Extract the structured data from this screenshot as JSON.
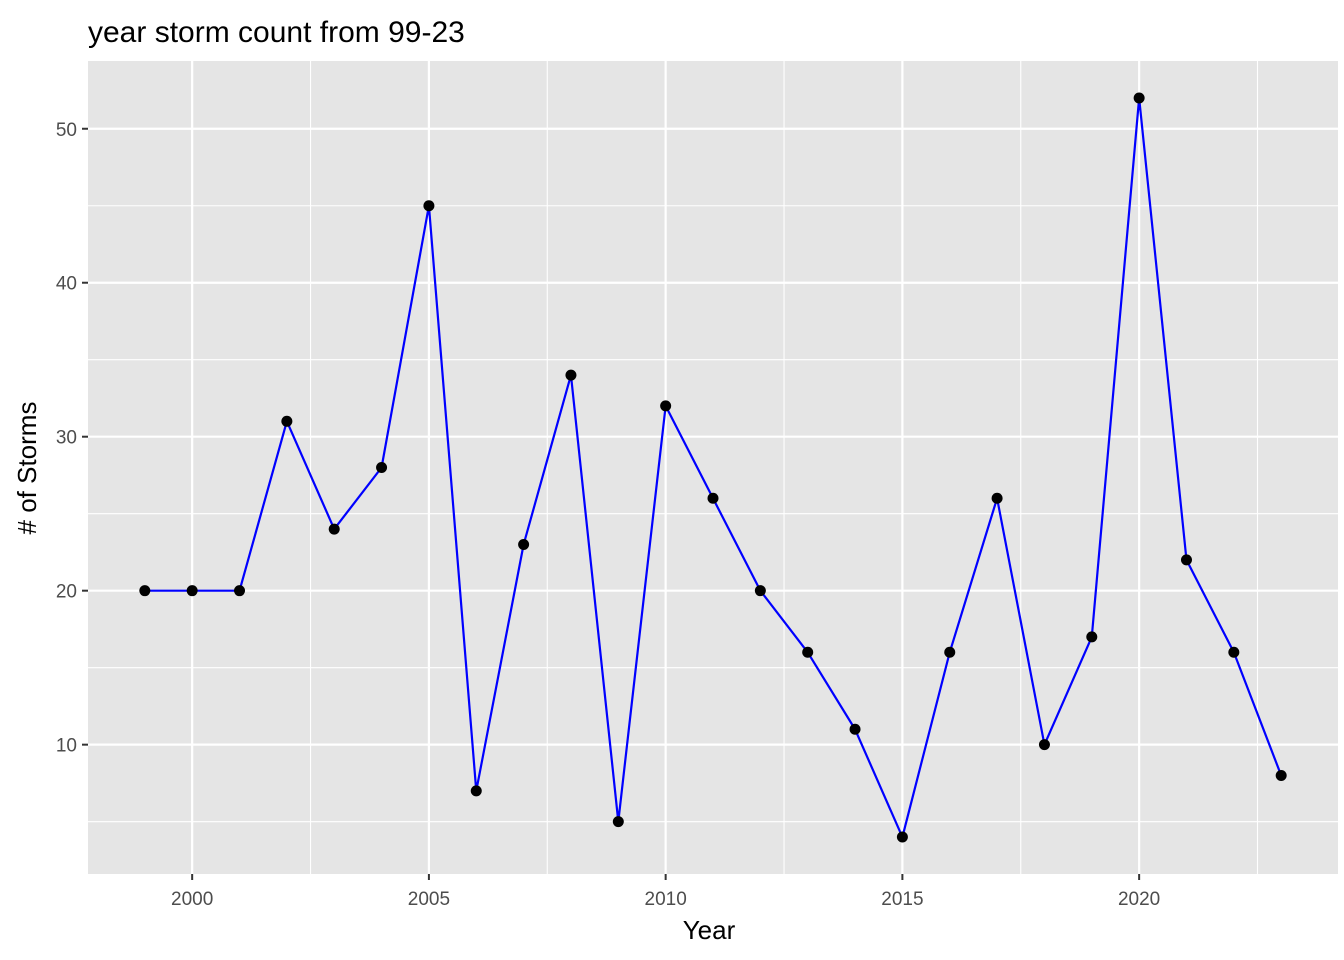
{
  "chart_data": {
    "type": "line",
    "title": "year storm count from 99-23",
    "xlabel": "Year",
    "ylabel": "# of Storms",
    "x": [
      1999,
      2000,
      2001,
      2002,
      2003,
      2004,
      2005,
      2006,
      2007,
      2008,
      2009,
      2010,
      2011,
      2012,
      2013,
      2014,
      2015,
      2016,
      2017,
      2018,
      2019,
      2020,
      2021,
      2022,
      2023
    ],
    "y": [
      20,
      20,
      20,
      31,
      24,
      28,
      45,
      7,
      23,
      34,
      5,
      32,
      26,
      20,
      16,
      11,
      4,
      16,
      26,
      10,
      17,
      52,
      22,
      16,
      8
    ],
    "xlim": [
      1997.8,
      2024.2
    ],
    "ylim": [
      1.6,
      54.4
    ],
    "x_ticks": [
      2000,
      2005,
      2010,
      2015,
      2020
    ],
    "y_ticks": [
      10,
      20,
      30,
      40,
      50
    ],
    "line_color": "#0000ff",
    "point_color": "#000000",
    "panel_background": "#e5e5e5",
    "grid": true,
    "legend": "none"
  }
}
